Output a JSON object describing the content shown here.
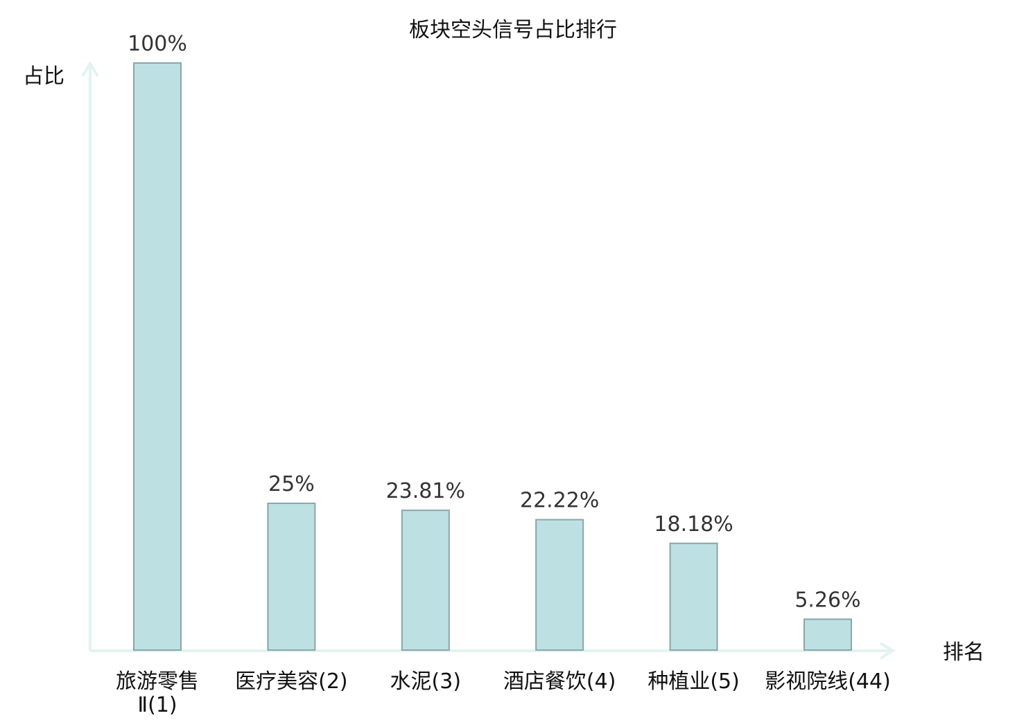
{
  "chart_data": {
    "type": "bar",
    "title": "板块空头信号占比排行",
    "ylabel": "占比",
    "xlabel": "排名",
    "ylim": [
      0,
      100
    ],
    "grid": false,
    "categories": [
      {
        "lines": [
          "旅游零售",
          "Ⅱ(1)"
        ],
        "highlight": false
      },
      {
        "lines": [
          "医疗美容(2)"
        ],
        "highlight": false
      },
      {
        "lines": [
          "水泥(3)"
        ],
        "highlight": false
      },
      {
        "lines": [
          "酒店餐饮(4)"
        ],
        "highlight": false
      },
      {
        "lines": [
          "种植业(5)"
        ],
        "highlight": false
      },
      {
        "lines": [
          "影视院线(44)"
        ],
        "highlight": true
      }
    ],
    "values": [
      100,
      25,
      23.81,
      22.22,
      18.18,
      5.26
    ],
    "value_labels": [
      "100%",
      "25%",
      "23.81%",
      "22.22%",
      "18.18%",
      "5.26%"
    ],
    "colors": {
      "bar_fill": "#bde0e3",
      "bar_stroke": "#8aa6aa",
      "axis": "#e2f3f1",
      "highlight_text": "#e0191c",
      "text": "#111111",
      "value_text": "#333333"
    }
  }
}
